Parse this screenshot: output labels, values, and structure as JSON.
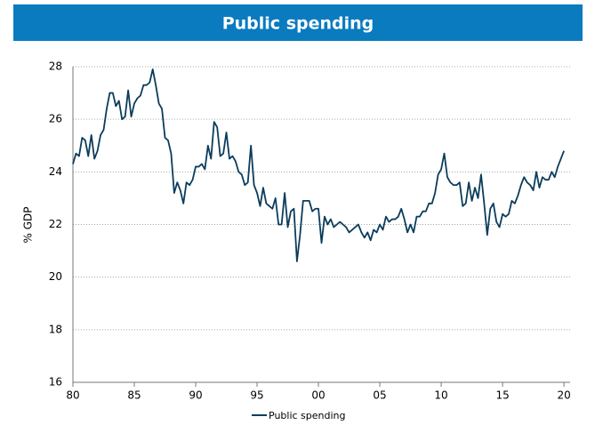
{
  "chart_data": {
    "type": "line",
    "title": "Public spending",
    "y_label": "% GDP",
    "x": [
      1980,
      1980.25,
      1980.5,
      1980.75,
      1981,
      1981.25,
      1981.5,
      1981.75,
      1982,
      1982.25,
      1982.5,
      1982.75,
      1983,
      1983.25,
      1983.5,
      1983.75,
      1984,
      1984.25,
      1984.5,
      1984.75,
      1985,
      1985.25,
      1985.5,
      1985.75,
      1986,
      1986.25,
      1986.5,
      1986.75,
      1987,
      1987.25,
      1987.5,
      1987.75,
      1988,
      1988.25,
      1988.5,
      1988.75,
      1989,
      1989.25,
      1989.5,
      1989.75,
      1990,
      1990.25,
      1990.5,
      1990.75,
      1991,
      1991.25,
      1991.5,
      1991.75,
      1992,
      1992.25,
      1992.5,
      1992.75,
      1993,
      1993.25,
      1993.5,
      1993.75,
      1994,
      1994.25,
      1994.5,
      1994.75,
      1995,
      1995.25,
      1995.5,
      1995.75,
      1996,
      1996.25,
      1996.5,
      1996.75,
      1997,
      1997.25,
      1997.5,
      1997.75,
      1998,
      1998.25,
      1998.5,
      1998.75,
      1999,
      1999.25,
      1999.5,
      1999.75,
      2000,
      2000.25,
      2000.5,
      2000.75,
      2001,
      2001.25,
      2001.5,
      2001.75,
      2002,
      2002.25,
      2002.5,
      2002.75,
      2003,
      2003.25,
      2003.5,
      2003.75,
      2004,
      2004.25,
      2004.5,
      2004.75,
      2005,
      2005.25,
      2005.5,
      2005.75,
      2006,
      2006.25,
      2006.5,
      2006.75,
      2007,
      2007.25,
      2007.5,
      2007.75,
      2008,
      2008.25,
      2008.5,
      2008.75,
      2009,
      2009.25,
      2009.5,
      2009.75,
      2010,
      2010.25,
      2010.5,
      2010.75,
      2011,
      2011.25,
      2011.5,
      2011.75,
      2012,
      2012.25,
      2012.5,
      2012.75,
      2013,
      2013.25,
      2013.5,
      2013.75,
      2014,
      2014.25,
      2014.5,
      2014.75,
      2015,
      2015.25,
      2015.5,
      2015.75,
      2016,
      2016.25,
      2016.5,
      2016.75,
      2017,
      2017.25,
      2017.5,
      2017.75,
      2018,
      2018.25,
      2018.5,
      2018.75,
      2019,
      2019.25,
      2019.5,
      2019.75,
      2020
    ],
    "series": [
      {
        "name": "Public spending",
        "color": "#0b3d5c",
        "values": [
          24.3,
          24.7,
          24.6,
          25.3,
          25.2,
          24.6,
          25.4,
          24.5,
          24.8,
          25.4,
          25.6,
          26.4,
          27.0,
          27.0,
          26.5,
          26.7,
          26.0,
          26.1,
          27.1,
          26.1,
          26.6,
          26.8,
          26.9,
          27.3,
          27.3,
          27.4,
          27.9,
          27.3,
          26.6,
          26.4,
          25.3,
          25.2,
          24.7,
          23.2,
          23.6,
          23.3,
          22.8,
          23.6,
          23.5,
          23.7,
          24.2,
          24.2,
          24.3,
          24.1,
          25.0,
          24.5,
          25.9,
          25.7,
          24.6,
          24.7,
          25.5,
          24.5,
          24.6,
          24.4,
          24.0,
          23.9,
          23.5,
          23.6,
          25.0,
          23.5,
          23.2,
          22.7,
          23.4,
          22.8,
          22.7,
          22.6,
          23.0,
          22.0,
          22.0,
          23.2,
          21.9,
          22.5,
          22.6,
          20.6,
          21.6,
          22.9,
          22.9,
          22.9,
          22.5,
          22.6,
          22.6,
          21.3,
          22.3,
          22.0,
          22.2,
          21.9,
          22.0,
          22.1,
          22.0,
          21.9,
          21.7,
          21.8,
          21.9,
          22.0,
          21.7,
          21.5,
          21.7,
          21.4,
          21.8,
          21.7,
          22.0,
          21.8,
          22.3,
          22.1,
          22.2,
          22.2,
          22.3,
          22.6,
          22.2,
          21.7,
          22.0,
          21.7,
          22.3,
          22.3,
          22.5,
          22.5,
          22.8,
          22.8,
          23.2,
          23.9,
          24.1,
          24.7,
          23.8,
          23.6,
          23.5,
          23.5,
          23.6,
          22.7,
          22.8,
          23.6,
          22.9,
          23.4,
          23.0,
          23.9,
          22.8,
          21.6,
          22.6,
          22.8,
          22.1,
          21.9,
          22.4,
          22.3,
          22.4,
          22.9,
          22.8,
          23.1,
          23.5,
          23.8,
          23.6,
          23.5,
          23.3,
          24.0,
          23.4,
          23.8,
          23.7,
          23.7,
          24.0,
          23.8,
          24.2,
          24.5,
          24.8
        ]
      }
    ],
    "xlim": [
      1980,
      2020.5
    ],
    "ylim": [
      16,
      28
    ],
    "xticks": [
      {
        "value": 1980,
        "label": "80"
      },
      {
        "value": 1985,
        "label": "85"
      },
      {
        "value": 1990,
        "label": "90"
      },
      {
        "value": 1995,
        "label": "95"
      },
      {
        "value": 2000,
        "label": "00"
      },
      {
        "value": 2005,
        "label": "05"
      },
      {
        "value": 2010,
        "label": "10"
      },
      {
        "value": 2015,
        "label": "15"
      },
      {
        "value": 2020,
        "label": "20"
      }
    ],
    "yticks": [
      16,
      18,
      20,
      22,
      24,
      26,
      28
    ],
    "grid": true
  }
}
